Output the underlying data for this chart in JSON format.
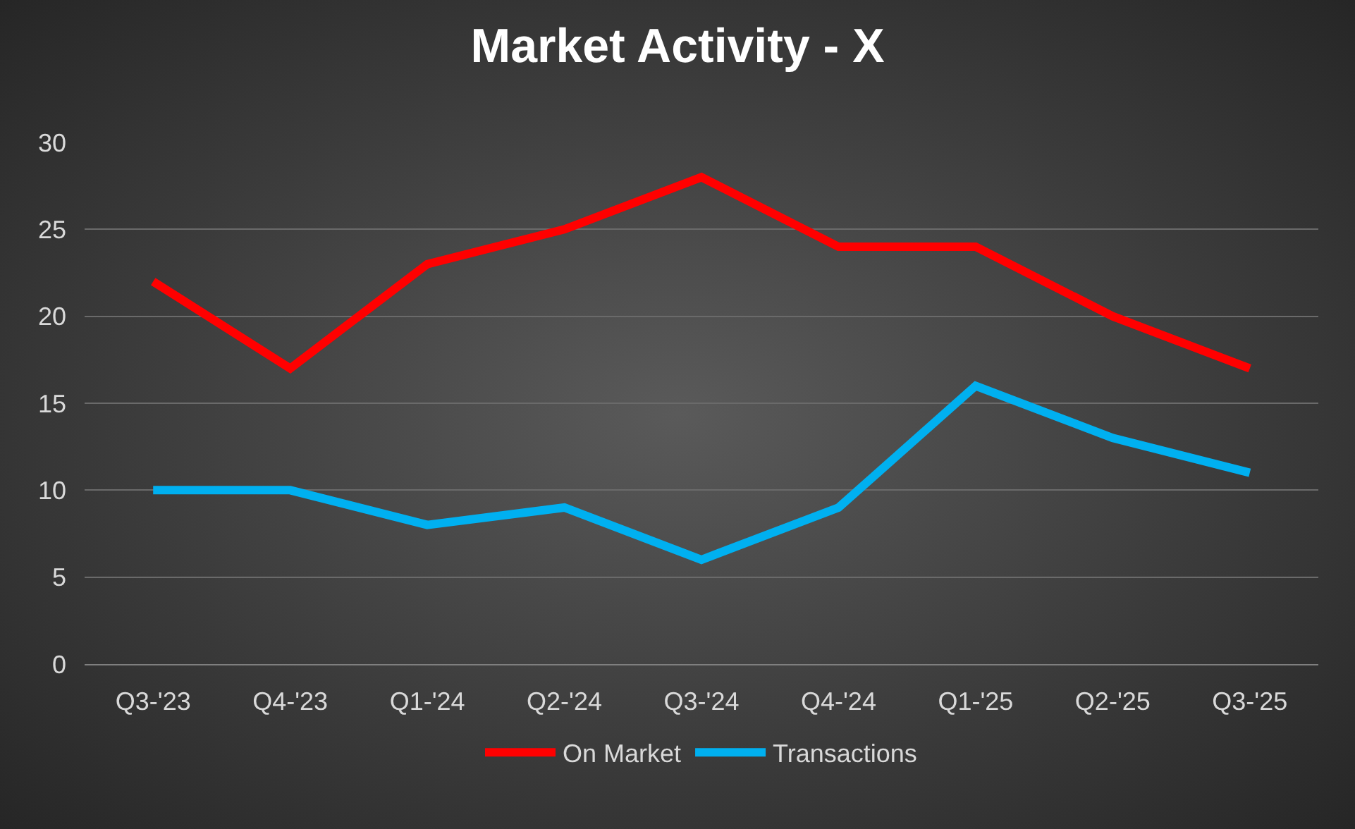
{
  "chart_data": {
    "type": "line",
    "title": "Market Activity - X",
    "categories": [
      "Q3-'23",
      "Q4-'23",
      "Q1-'24",
      "Q2-'24",
      "Q3-'24",
      "Q4-'24",
      "Q1-'25",
      "Q2-'25",
      "Q3-'25"
    ],
    "series": [
      {
        "name": "On Market",
        "color": "#ff0000",
        "values": [
          22,
          17,
          23,
          25,
          28,
          24,
          24,
          20,
          17
        ]
      },
      {
        "name": "Transactions",
        "color": "#00b0f0",
        "values": [
          10,
          10,
          8,
          9,
          6,
          9,
          16,
          13,
          11
        ]
      }
    ],
    "ylim": [
      0,
      30
    ],
    "yticks": [
      0,
      5,
      10,
      15,
      20,
      25,
      30
    ],
    "grid": "y",
    "legend": "bottom",
    "marker": "none",
    "line_style": "solid"
  }
}
